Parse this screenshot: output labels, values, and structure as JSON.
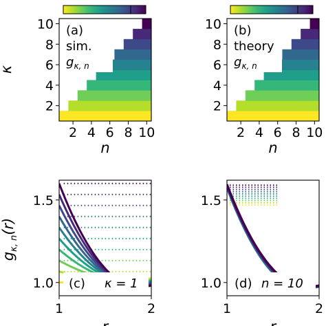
{
  "colors": {
    "colormap": "viridis",
    "viridis_stops": [
      "#fde725",
      "#b5de2b",
      "#6ece58",
      "#35b779",
      "#1f9e89",
      "#26828e",
      "#31688e",
      "#3e4989",
      "#482878",
      "#440154"
    ],
    "annotation_box_bg": "#ffffff",
    "frame": "#000000"
  },
  "chart_data": [
    {
      "id": "a",
      "type": "heatmap",
      "panel_label": "(a)",
      "annotation_lines": [
        "sim."
      ],
      "annotation_math": {
        "base": "g",
        "sub": "κ, n"
      },
      "xlabel": "n",
      "ylabel": "κ",
      "x_ticks": [
        "2",
        "4",
        "6",
        "8",
        "10"
      ],
      "y_ticks": [
        "2",
        "4",
        "6",
        "8",
        "10"
      ],
      "x_range": [
        1,
        10
      ],
      "y_range": [
        1,
        10
      ],
      "fill_rule": "cell shown when kappa <= n; color level = kappa",
      "colorbar": {
        "orientation": "horizontal",
        "position": "top",
        "tick_labels": []
      }
    },
    {
      "id": "b",
      "type": "heatmap",
      "panel_label": "(b)",
      "annotation_lines": [
        "theory"
      ],
      "annotation_math": {
        "base": "g",
        "sub": "κ, n"
      },
      "xlabel": "n",
      "ylabel": "",
      "x_ticks": [
        "2",
        "4",
        "6",
        "8",
        "10"
      ],
      "y_ticks": [
        "2",
        "4",
        "6",
        "8",
        "10"
      ],
      "x_range": [
        1,
        10
      ],
      "y_range": [
        1,
        10
      ],
      "fill_rule": "cell shown when kappa <= n; color level = kappa",
      "colorbar": {
        "orientation": "horizontal",
        "position": "top",
        "tick_labels": []
      }
    },
    {
      "id": "c",
      "type": "line",
      "panel_label": "(c)",
      "annotation": "κ = 1",
      "xlabel": "r",
      "ylabel": "g",
      "ylabel_sub": "κ, n",
      "ylabel_suffix": "(r)",
      "x_ticks": [
        "1",
        "2"
      ],
      "y_ticks": [
        "1.0",
        "1.5"
      ],
      "xlim": [
        1,
        2
      ],
      "ylim": [
        0.92,
        1.62
      ],
      "series_count": 10,
      "curve_model": "solid curves from 1+0.6*q at r=1 dipping to ~0.975 near r=1.85; dotted horizontal levels 1+0.6*q on the right",
      "q_values": [
        0.0,
        0.111,
        0.222,
        0.333,
        0.444,
        0.556,
        0.667,
        0.778,
        0.889,
        1.0
      ]
    },
    {
      "id": "d",
      "type": "line",
      "panel_label": "(d)",
      "annotation": "n = 10",
      "xlabel": "r",
      "ylabel": "",
      "x_ticks": [
        "1",
        "2"
      ],
      "y_ticks": [
        "1.0",
        "1.5"
      ],
      "xlim": [
        1,
        2
      ],
      "ylim": [
        0.92,
        1.62
      ],
      "series_count": 10,
      "curve_model": "all curves start near 1.6 at r=1 and dip to ~0.97 near r=1.85; dotted levels between 1.47 and 1.59 on the upper left",
      "dotted_levels": [
        1.47,
        1.483,
        1.497,
        1.51,
        1.523,
        1.537,
        1.55,
        1.563,
        1.577,
        1.59
      ]
    }
  ]
}
